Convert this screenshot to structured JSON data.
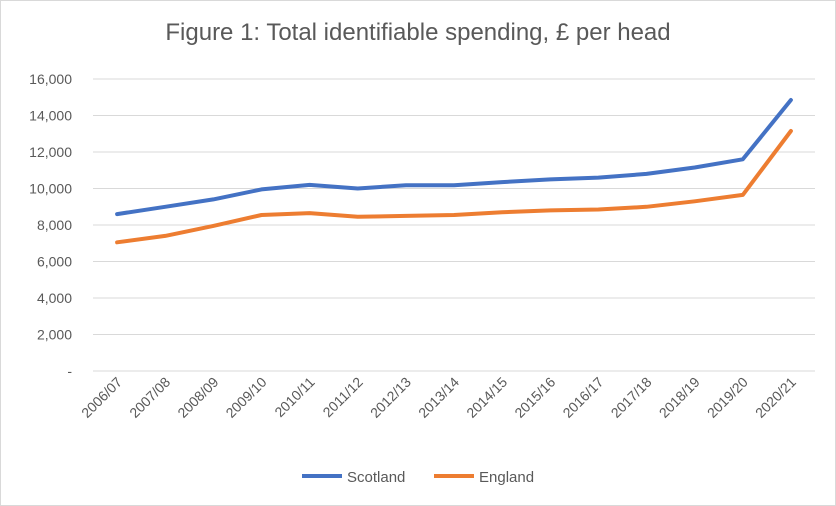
{
  "chart_data": {
    "type": "line",
    "title": "Figure 1: Total identifiable spending, £ per head",
    "xlabel": "",
    "ylabel": "",
    "categories": [
      "2006/07",
      "2007/08",
      "2008/09",
      "2009/10",
      "2010/11",
      "2011/12",
      "2012/13",
      "2013/14",
      "2014/15",
      "2015/16",
      "2016/17",
      "2017/18",
      "2018/19",
      "2019/20",
      "2020/21"
    ],
    "series": [
      {
        "name": "Scotland",
        "color": "#4472c4",
        "values": [
          8600,
          9000,
          9400,
          9950,
          10200,
          10000,
          10180,
          10180,
          10350,
          10500,
          10600,
          10800,
          11150,
          11600,
          14850
        ]
      },
      {
        "name": "England",
        "color": "#ed7d31",
        "values": [
          7050,
          7400,
          7950,
          8550,
          8650,
          8450,
          8500,
          8550,
          8700,
          8800,
          8850,
          9000,
          9300,
          9650,
          13150
        ]
      }
    ],
    "ylim": [
      0,
      16000
    ],
    "yticks": [
      0,
      2000,
      4000,
      6000,
      8000,
      10000,
      12000,
      14000,
      16000
    ],
    "ytick_labels": [
      "-",
      "2,000",
      "4,000",
      "6,000",
      "8,000",
      "10,000",
      "12,000",
      "14,000",
      "16,000"
    ],
    "grid": true,
    "legend_position": "bottom",
    "gridline_color": "#d9d9d9"
  }
}
